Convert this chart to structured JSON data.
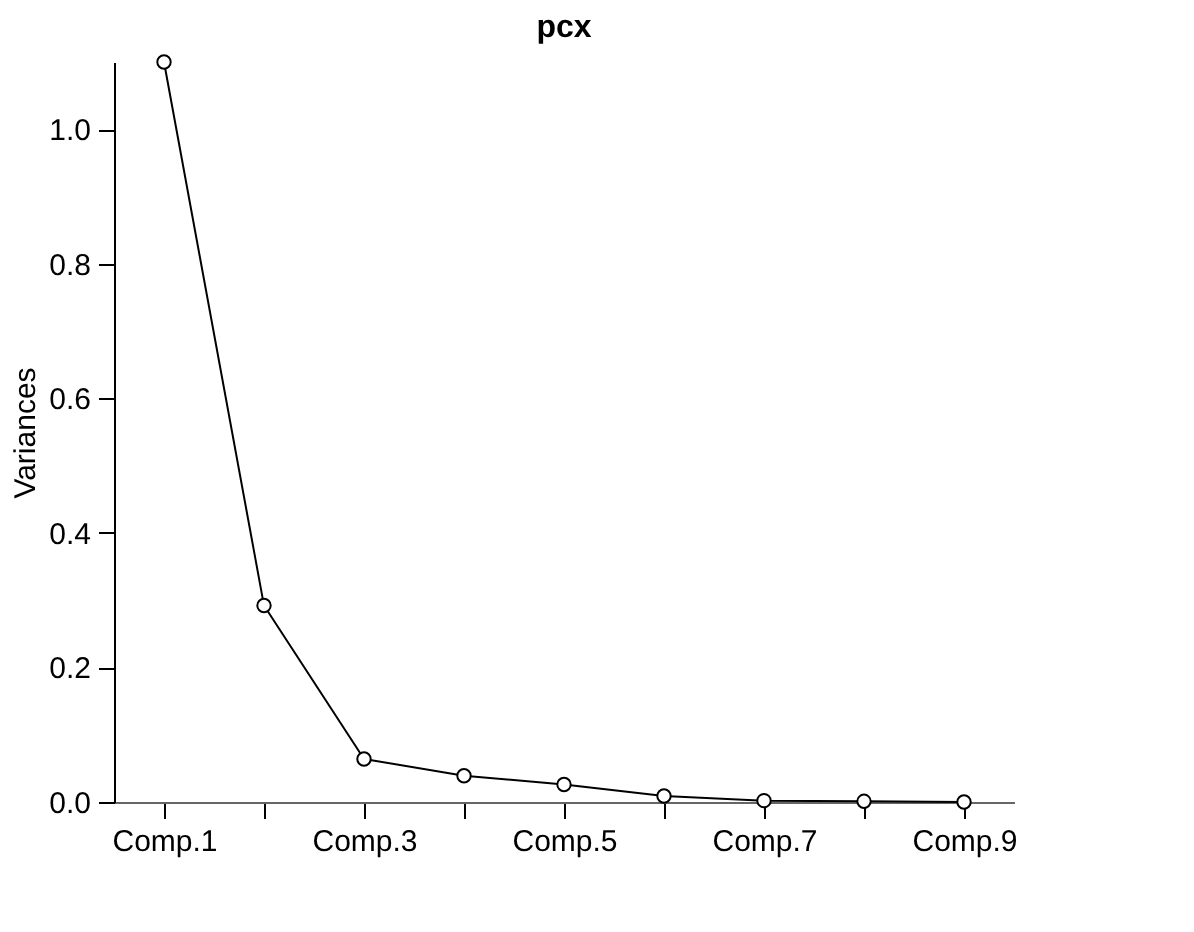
{
  "chart_data": {
    "type": "line",
    "title": "pcx",
    "ylabel": "Variances",
    "categories": [
      "Comp.1",
      null,
      "Comp.3",
      null,
      "Comp.5",
      null,
      "Comp.7",
      null,
      "Comp.9"
    ],
    "series": [
      {
        "color": "#000000",
        "values": [
          1.1,
          0.292,
          0.064,
          0.039,
          0.026,
          0.009,
          0.002,
          0.001,
          0.0
        ]
      }
    ],
    "ylim": [
      0,
      1.1
    ],
    "yticks": [
      {
        "value": 0,
        "label": "0.0"
      },
      0.2,
      0.4,
      0.6,
      0.8,
      {
        "value": 1,
        "label": "1.0"
      }
    ],
    "marker": "circle",
    "line_style": "solid",
    "grid": false
  }
}
